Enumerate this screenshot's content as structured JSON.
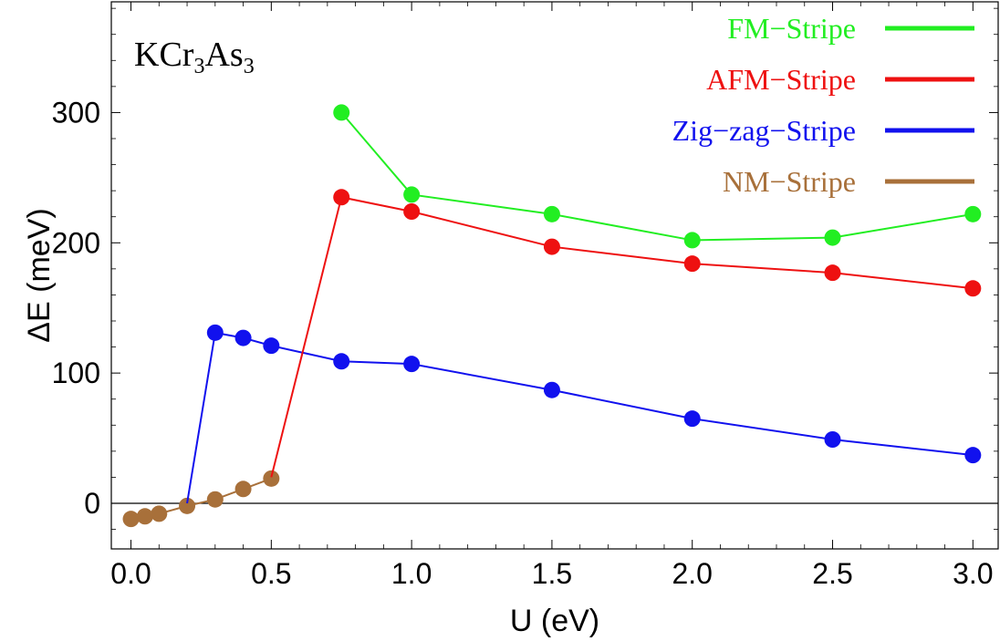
{
  "chart_data": {
    "type": "line",
    "title_parts": {
      "main": "KCr",
      "sub1": "3",
      "mid": "As",
      "sub2": "3"
    },
    "xlabel": "U (eV)",
    "ylabel": "ΔE (meV)",
    "xlim": [
      -0.07,
      3.09
    ],
    "ylim": [
      -35,
      385
    ],
    "x_ticks": [
      0.0,
      0.5,
      1.0,
      1.5,
      2.0,
      2.5,
      3.0
    ],
    "x_tick_labels": [
      "0.0",
      "0.5",
      "1.0",
      "1.5",
      "2.0",
      "2.5",
      "3.0"
    ],
    "y_ticks": [
      0,
      100,
      200,
      300
    ],
    "y_tick_labels": [
      "0",
      "100",
      "200",
      "300"
    ],
    "zero_line": true,
    "grid": false,
    "legend_position": "top-right",
    "series": [
      {
        "name": "FM−Stripe",
        "color": "#22ee22",
        "x": [
          0.75,
          1.0,
          1.5,
          2.0,
          2.5,
          3.0
        ],
        "y": [
          300,
          237,
          222,
          202,
          204,
          222
        ]
      },
      {
        "name": "AFM−Stripe",
        "color": "#ee1111",
        "line_start": [
          0.5,
          20
        ],
        "x": [
          0.75,
          1.0,
          1.5,
          2.0,
          2.5,
          3.0
        ],
        "y": [
          235,
          224,
          197,
          184,
          177,
          165
        ]
      },
      {
        "name": "Zig−zag−Stripe",
        "color": "#1111ee",
        "line_start": [
          0.2,
          0
        ],
        "x": [
          0.3,
          0.4,
          0.5,
          0.75,
          1.0,
          1.5,
          2.0,
          2.5,
          3.0
        ],
        "y": [
          131,
          127,
          121,
          109,
          107,
          87,
          65,
          49,
          37
        ]
      },
      {
        "name": "NM−Stripe",
        "color": "#a8703a",
        "x": [
          0.0,
          0.05,
          0.1,
          0.2,
          0.3,
          0.4,
          0.5
        ],
        "y": [
          -12,
          -10,
          -8,
          -2,
          3,
          11,
          19
        ]
      }
    ]
  }
}
